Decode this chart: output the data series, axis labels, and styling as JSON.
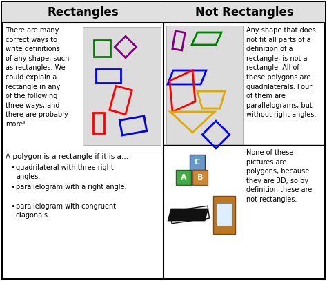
{
  "title_left": "Rectangles",
  "title_right": "Not Rectangles",
  "bg_color": "#ffffff",
  "border_color": "#000000",
  "title_bg": "#e0e0e0",
  "left_text_top": "There are many\ncorrect ways to\nwrite definitions\nof any shape, such\nas rectangles. We\ncould explain a\nrectangle in any\nof the following\nthree ways, and\nthere are probably\nmore!",
  "left_text_bottom_intro": "A polygon is a rectangle if it is a…",
  "left_bullets": [
    "quadrilateral with three right\nangles.",
    "parallelogram with a right angle.",
    "parallelogram with congruent\ndiagonals."
  ],
  "right_text_top": "Any shape that does\nnot fit all parts of a\ndefinition of a\nrectangle, is not a\nrectangle. All of\nthese polygons are\nquadrilaterals. Four\nof them are\nparallelograms, but\nwithout right angles.",
  "right_text_bottom": "None of these\npictures are\npolygons, because\nthey are 3D, so by\ndefinition these are\nnot rectangles.",
  "image_placeholder_color": "#dcdcdc",
  "fig_width": 4.74,
  "fig_height": 4.07,
  "dpi": 100
}
